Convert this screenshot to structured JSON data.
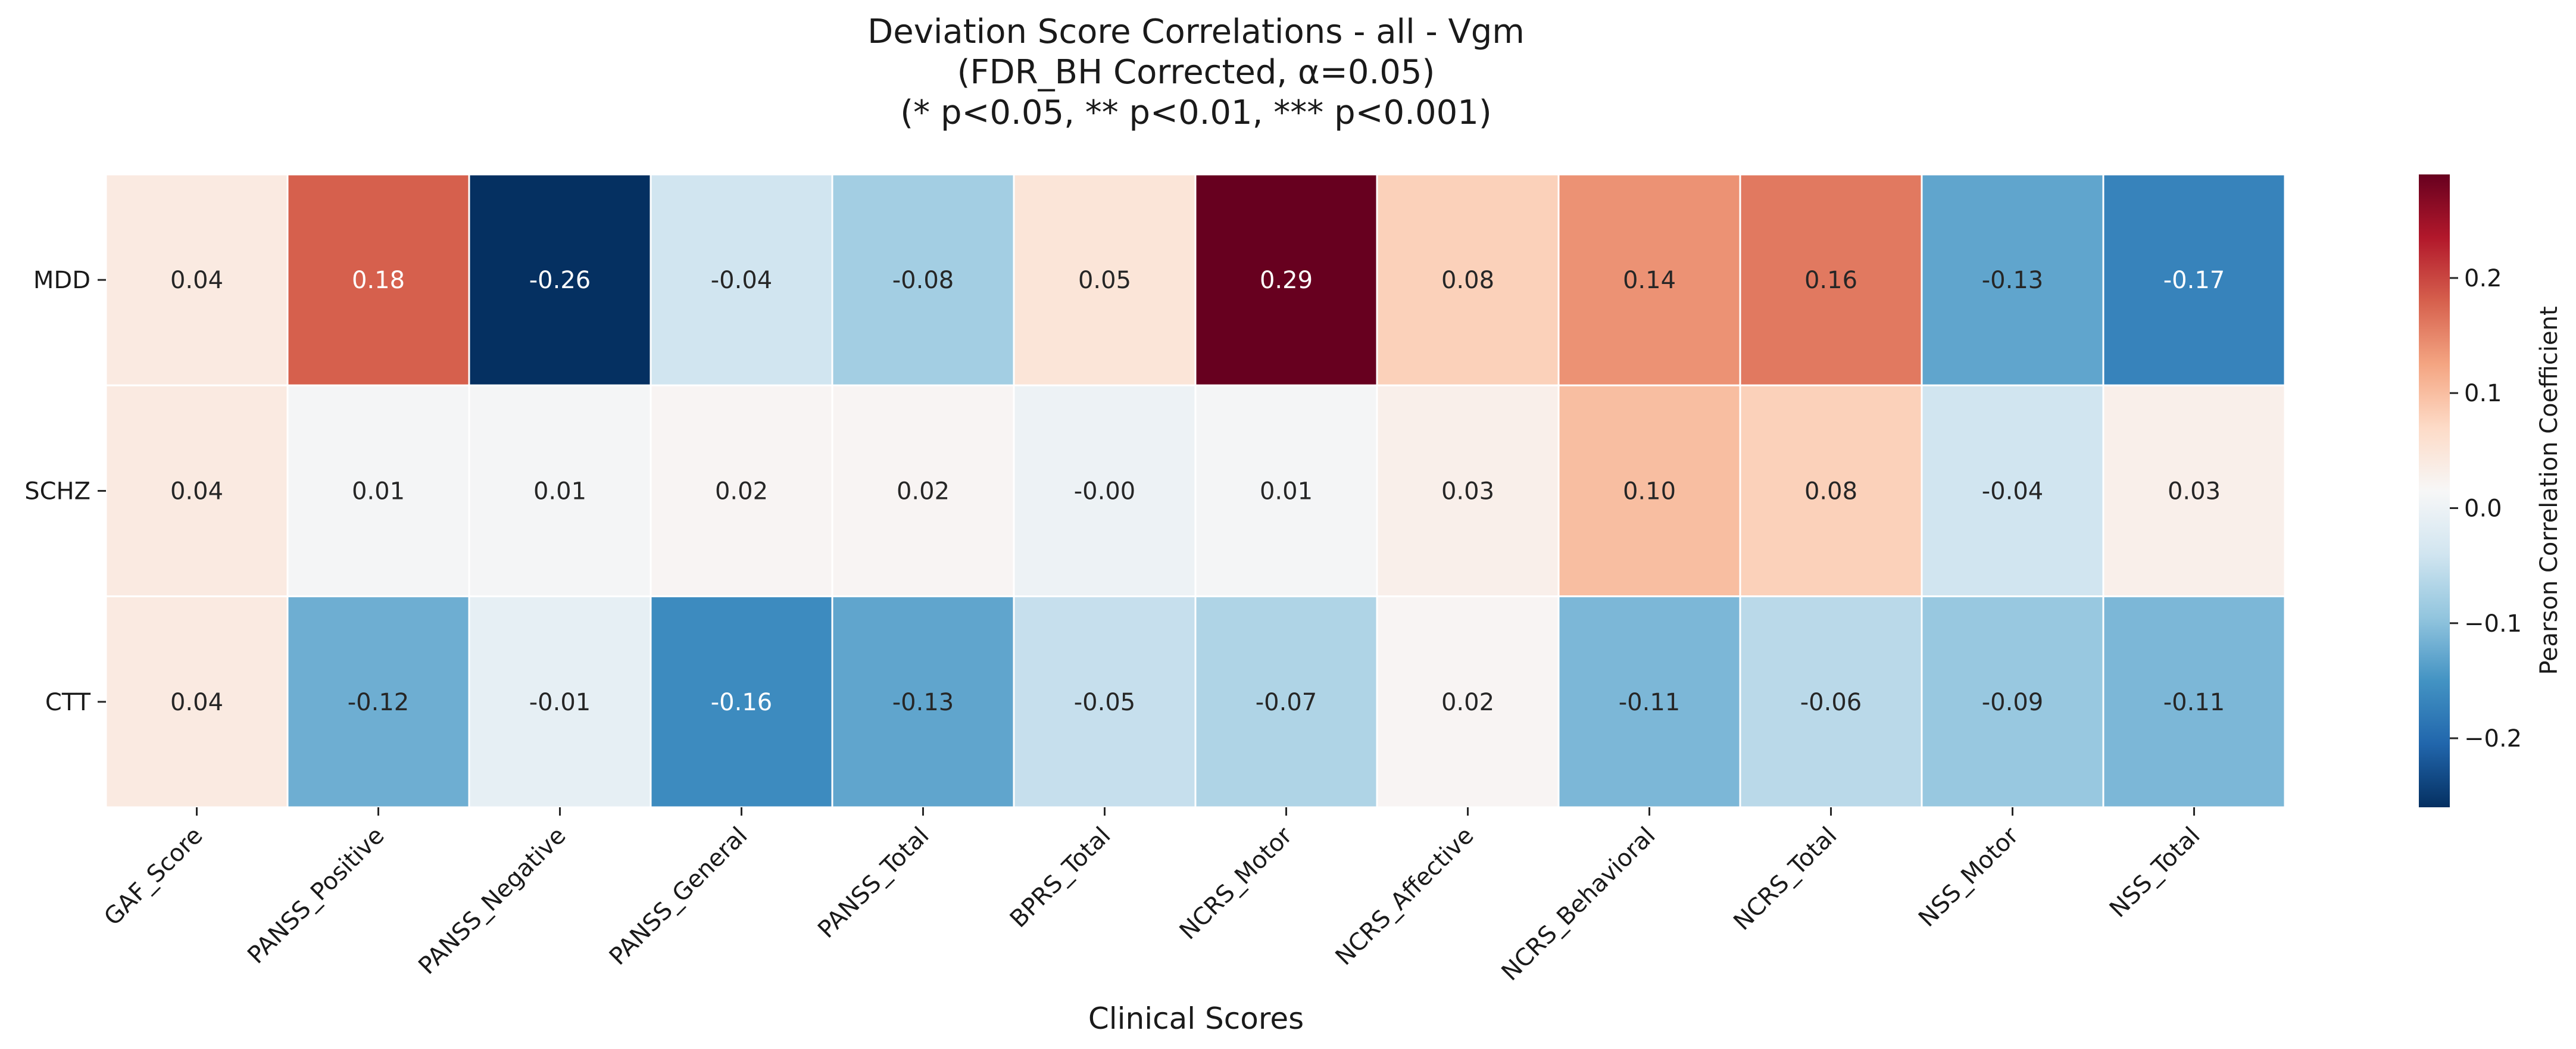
{
  "chart_data": {
    "type": "heatmap",
    "title": "Deviation Score Correlations - all - Vgm",
    "subtitle_lines": [
      "(FDR_BH Corrected, α=0.05)",
      "(* p<0.05, ** p<0.01, *** p<0.001)"
    ],
    "xlabel": "Clinical Scores",
    "ylabel": "",
    "x_categories": [
      "GAF_Score",
      "PANSS_Positive",
      "PANSS_Negative",
      "PANSS_General",
      "PANSS_Total",
      "BPRS_Total",
      "NCRS_Motor",
      "NCRS_Affective",
      "NCRS_Behavioral",
      "NCRS_Total",
      "NSS_Motor",
      "NSS_Total"
    ],
    "y_categories": [
      "MDD",
      "SCHZ",
      "CTT"
    ],
    "values": [
      [
        0.04,
        0.18,
        -0.26,
        -0.04,
        -0.08,
        0.05,
        0.29,
        0.08,
        0.14,
        0.16,
        -0.13,
        -0.17
      ],
      [
        0.04,
        0.01,
        0.01,
        0.02,
        0.02,
        -0.0,
        0.01,
        0.03,
        0.1,
        0.08,
        -0.04,
        0.03
      ],
      [
        0.04,
        -0.12,
        -0.01,
        -0.16,
        -0.13,
        -0.05,
        -0.07,
        0.02,
        -0.11,
        -0.06,
        -0.09,
        -0.11
      ]
    ],
    "value_labels": [
      [
        "0.04",
        "0.18",
        "-0.26",
        "-0.04",
        "-0.08",
        "0.05",
        "0.29",
        "0.08",
        "0.14",
        "0.16",
        "-0.13",
        "-0.17"
      ],
      [
        "0.04",
        "0.01",
        "0.01",
        "0.02",
        "0.02",
        "-0.00",
        "0.01",
        "0.03",
        "0.10",
        "0.08",
        "-0.04",
        "0.03"
      ],
      [
        "0.04",
        "-0.12",
        "-0.01",
        "-0.16",
        "-0.13",
        "-0.05",
        "-0.07",
        "0.02",
        "-0.11",
        "-0.06",
        "-0.09",
        "-0.11"
      ]
    ],
    "colormap": "RdBu_r",
    "vmin": -0.26,
    "vmax": 0.29,
    "colorbar": {
      "label": "Pearson Correlation Coefficient",
      "ticks": [
        0.2,
        0.1,
        0.0,
        -0.1,
        -0.2
      ],
      "tick_labels": [
        "0.2",
        "0.1",
        "0.0",
        "−0.1",
        "−0.2"
      ]
    },
    "grid": false
  }
}
